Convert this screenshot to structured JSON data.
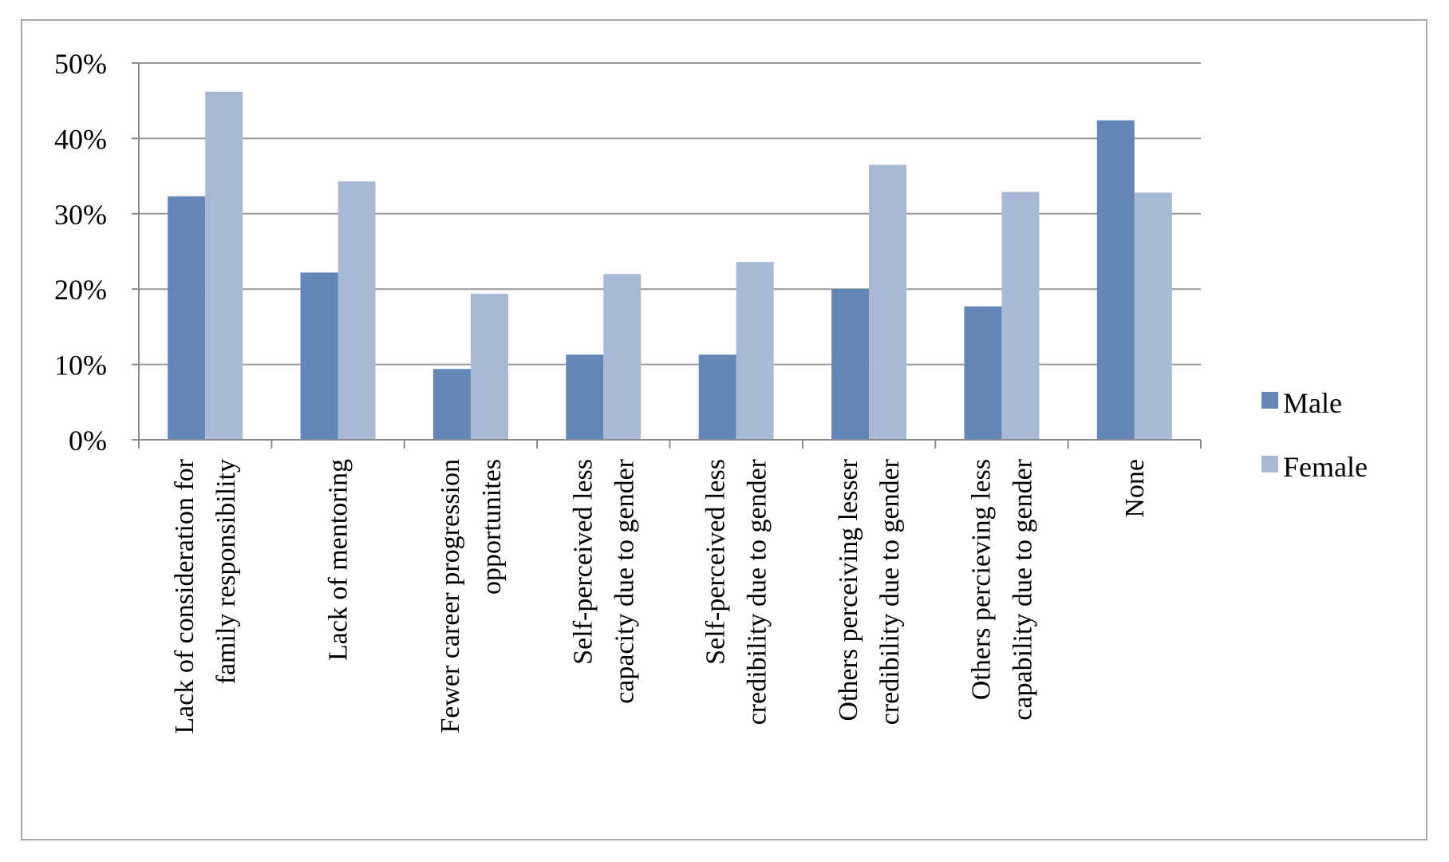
{
  "chart_data": {
    "type": "bar",
    "categories": [
      [
        "Lack of consideration for",
        "family responsibility"
      ],
      [
        "Lack of mentoring"
      ],
      [
        "Fewer career progression",
        "opportunites"
      ],
      [
        "Self-perceived less",
        "capacity due to gender"
      ],
      [
        "Self-perceived less",
        "credibility due to gender"
      ],
      [
        "Others perceiving lesser",
        "credibility due to gender"
      ],
      [
        "Others percieving less",
        "capability due to gender"
      ],
      [
        "None"
      ]
    ],
    "series": [
      {
        "name": "Male",
        "color": "#6287b6",
        "values": [
          32.3,
          22.2,
          9.4,
          11.3,
          11.3,
          20.0,
          17.7,
          42.4
        ]
      },
      {
        "name": "Female",
        "color": "#a9b9d5",
        "values": [
          46.2,
          34.3,
          19.4,
          22.0,
          23.6,
          36.5,
          32.9,
          32.8
        ]
      }
    ],
    "yticks": [
      "0%",
      "10%",
      "20%",
      "30%",
      "40%",
      "50%"
    ],
    "ylim": [
      0,
      50
    ],
    "grid": true,
    "legend_position": "right",
    "title": "",
    "xlabel": "",
    "ylabel": ""
  }
}
